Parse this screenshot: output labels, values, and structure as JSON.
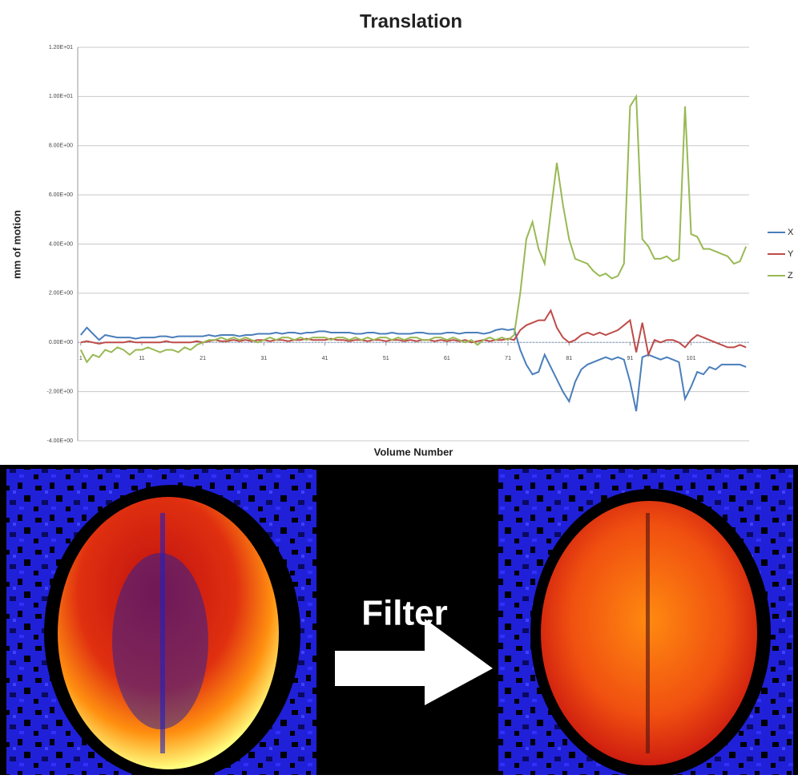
{
  "chart_data": {
    "type": "line",
    "title": "Translation",
    "y_label": "mm of motion",
    "x_label": "Volume Number",
    "x": [
      1,
      2,
      3,
      4,
      5,
      6,
      7,
      8,
      9,
      10,
      11,
      12,
      13,
      14,
      15,
      16,
      17,
      18,
      19,
      20,
      21,
      22,
      23,
      24,
      25,
      26,
      27,
      28,
      29,
      30,
      31,
      32,
      33,
      34,
      35,
      36,
      37,
      38,
      39,
      40,
      41,
      42,
      43,
      44,
      45,
      46,
      47,
      48,
      49,
      50,
      51,
      52,
      53,
      54,
      55,
      56,
      57,
      58,
      59,
      60,
      61,
      62,
      63,
      64,
      65,
      66,
      67,
      68,
      69,
      70,
      71,
      72,
      73,
      74,
      75,
      76,
      77,
      78,
      79,
      80,
      81,
      82,
      83,
      84,
      85,
      86,
      87,
      88,
      89,
      90,
      91,
      92,
      93,
      94,
      95,
      96,
      97,
      98,
      99,
      100,
      101,
      102,
      103,
      104,
      105,
      106,
      107,
      108,
      109,
      110
    ],
    "xlim": [
      0.5,
      110.5
    ],
    "xticks": [
      1,
      11,
      21,
      31,
      41,
      51,
      61,
      71,
      81,
      91,
      101
    ],
    "ylim": [
      -4,
      12
    ],
    "yticks": [
      {
        "value": -4,
        "label": "-4.00E+00"
      },
      {
        "value": -2,
        "label": "-2.00E+00"
      },
      {
        "value": 0,
        "label": "0.00E+00"
      },
      {
        "value": 2,
        "label": "2.00E+00"
      },
      {
        "value": 4,
        "label": "4.00E+00"
      },
      {
        "value": 6,
        "label": "6.00E+00"
      },
      {
        "value": 8,
        "label": "8.00E+00"
      },
      {
        "value": 10,
        "label": "1.00E+01"
      },
      {
        "value": 12,
        "label": "1.20E+01"
      }
    ],
    "grid": true,
    "legend": "right",
    "series": [
      {
        "name": "X",
        "color": "#4a7ebb",
        "values": [
          0.3,
          0.6,
          0.35,
          0.1,
          0.3,
          0.25,
          0.2,
          0.2,
          0.2,
          0.15,
          0.2,
          0.2,
          0.2,
          0.25,
          0.25,
          0.2,
          0.25,
          0.25,
          0.25,
          0.25,
          0.25,
          0.3,
          0.25,
          0.3,
          0.3,
          0.3,
          0.25,
          0.3,
          0.3,
          0.35,
          0.35,
          0.35,
          0.4,
          0.35,
          0.4,
          0.4,
          0.35,
          0.4,
          0.4,
          0.45,
          0.45,
          0.4,
          0.4,
          0.4,
          0.4,
          0.35,
          0.35,
          0.4,
          0.4,
          0.35,
          0.35,
          0.4,
          0.35,
          0.35,
          0.35,
          0.4,
          0.4,
          0.35,
          0.35,
          0.35,
          0.4,
          0.4,
          0.35,
          0.4,
          0.4,
          0.4,
          0.35,
          0.4,
          0.5,
          0.55,
          0.5,
          0.55,
          -0.3,
          -0.9,
          -1.3,
          -1.2,
          -0.5,
          -1.0,
          -1.5,
          -2.0,
          -2.4,
          -1.6,
          -1.1,
          -0.9,
          -0.8,
          -0.7,
          -0.6,
          -0.7,
          -0.6,
          -0.7,
          -1.6,
          -2.8,
          -0.6,
          -0.5,
          -0.6,
          -0.7,
          -0.6,
          -0.7,
          -0.8,
          -2.3,
          -1.8,
          -1.2,
          -1.3,
          -1.0,
          -1.1,
          -0.9,
          -0.9,
          -0.9,
          -0.9,
          -1.0
        ]
      },
      {
        "name": "Y",
        "color": "#be4b48",
        "values": [
          0,
          0.05,
          0,
          -0.05,
          0,
          0,
          0,
          0,
          0.05,
          0,
          0,
          0,
          0,
          0,
          0.05,
          0,
          0,
          0,
          0,
          0.05,
          0,
          0.05,
          0.1,
          0.05,
          0.05,
          0.1,
          0.05,
          0.1,
          0.05,
          0.1,
          0.1,
          0.05,
          0.1,
          0.1,
          0.05,
          0.1,
          0.1,
          0.15,
          0.1,
          0.1,
          0.1,
          0.15,
          0.1,
          0.1,
          0.05,
          0.1,
          0.1,
          0.05,
          0.1,
          0.1,
          0.05,
          0.1,
          0.1,
          0.05,
          0.1,
          0.05,
          0.1,
          0.1,
          0.05,
          0.1,
          0.05,
          0.1,
          0.05,
          0.1,
          0,
          0.05,
          0.1,
          0.05,
          0.1,
          0.1,
          0.15,
          0.1,
          0.5,
          0.7,
          0.8,
          0.9,
          0.9,
          1.3,
          0.6,
          0.2,
          0.0,
          0.1,
          0.3,
          0.4,
          0.3,
          0.4,
          0.3,
          0.4,
          0.5,
          0.7,
          0.9,
          -0.4,
          0.8,
          -0.5,
          0.1,
          0.0,
          0.1,
          0.1,
          0.0,
          -0.2,
          0.1,
          0.3,
          0.2,
          0.1,
          0.0,
          -0.1,
          -0.2,
          -0.2,
          -0.1,
          -0.2
        ]
      },
      {
        "name": "Z",
        "color": "#98b954",
        "values": [
          -0.3,
          -0.8,
          -0.5,
          -0.6,
          -0.3,
          -0.4,
          -0.2,
          -0.3,
          -0.5,
          -0.3,
          -0.3,
          -0.2,
          -0.3,
          -0.4,
          -0.3,
          -0.3,
          -0.4,
          -0.2,
          -0.3,
          -0.1,
          0.0,
          0.1,
          0.1,
          0.2,
          0.1,
          0.2,
          0.1,
          0.2,
          0.1,
          0.0,
          0.1,
          0.2,
          0.1,
          0.2,
          0.2,
          0.1,
          0.2,
          0.1,
          0.2,
          0.2,
          0.2,
          0.1,
          0.2,
          0.2,
          0.1,
          0.2,
          0.1,
          0.2,
          0.1,
          0.2,
          0.2,
          0.1,
          0.2,
          0.1,
          0.2,
          0.2,
          0.1,
          0.1,
          0.2,
          0.2,
          0.1,
          0.2,
          0.1,
          0.0,
          0.1,
          -0.1,
          0.1,
          0.2,
          0.1,
          0.2,
          0.1,
          0.3,
          2.0,
          4.2,
          4.9,
          3.8,
          3.2,
          5.3,
          7.3,
          5.6,
          4.2,
          3.4,
          3.3,
          3.2,
          2.9,
          2.7,
          2.8,
          2.6,
          2.7,
          3.2,
          9.6,
          10.0,
          4.2,
          3.9,
          3.4,
          3.4,
          3.5,
          3.3,
          3.4,
          9.6,
          4.4,
          4.3,
          3.8,
          3.8,
          3.7,
          3.6,
          3.5,
          3.2,
          3.3,
          3.9
        ]
      }
    ]
  },
  "image_panel": {
    "label": "Filter"
  }
}
